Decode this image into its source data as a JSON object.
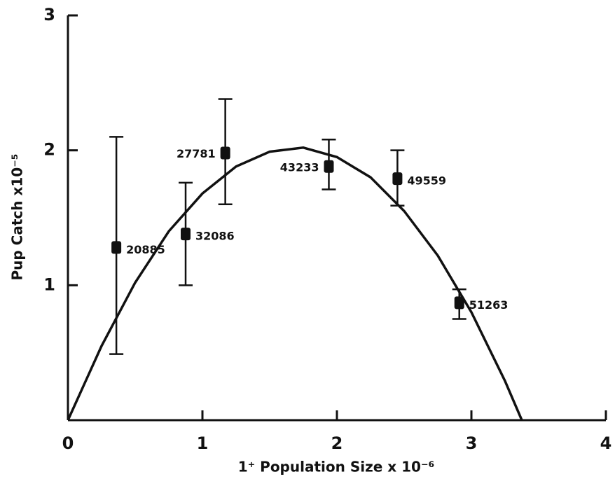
{
  "chart_data": {
    "type": "scatter",
    "xlabel": "1⁺ Population Size x 10⁻⁶",
    "ylabel": "Pup Catch x10⁻⁵",
    "xlim": [
      0,
      4
    ],
    "ylim": [
      0,
      3
    ],
    "xticks": [
      0,
      1,
      2,
      3,
      4
    ],
    "yticks": [
      1,
      2,
      3
    ],
    "color": "#111111",
    "series": [
      {
        "x": [
          0.36,
          0.875,
          1.17,
          1.94,
          2.45,
          2.91
        ],
        "values": [
          1.28,
          1.38,
          1.98,
          1.88,
          1.79,
          0.87
        ],
        "upper": [
          2.1,
          1.76,
          2.38,
          2.08,
          2.0,
          0.97
        ],
        "lower": [
          0.49,
          1.0,
          1.6,
          1.71,
          1.59,
          0.75
        ],
        "labels": [
          "20885",
          "32086",
          "27781",
          "43233",
          "49559",
          "51263"
        ]
      }
    ],
    "curve": {
      "x": [
        0,
        0.25,
        0.5,
        0.75,
        1,
        1.25,
        1.5,
        1.75,
        2,
        2.25,
        2.5,
        2.75,
        3,
        3.25,
        3.375
      ],
      "values": [
        0,
        0.55,
        1.02,
        1.4,
        1.68,
        1.88,
        1.99,
        2.02,
        1.95,
        1.8,
        1.55,
        1.22,
        0.8,
        0.29,
        0
      ]
    }
  }
}
